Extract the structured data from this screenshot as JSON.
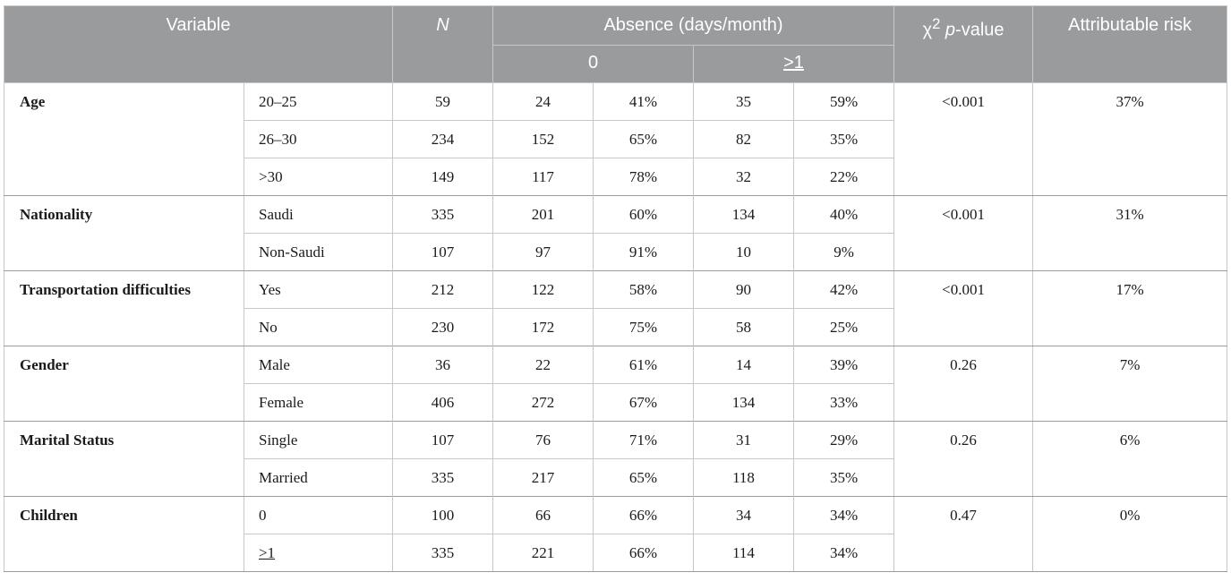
{
  "header": {
    "variable": "Variable",
    "n": "N",
    "absence": "Absence (days/month)",
    "absence_zero": "0",
    "absence_ge1": ">1",
    "chi_symbol": "χ",
    "chi_exp": "2",
    "p_label": "p",
    "p_suffix": "-value",
    "attributable_risk": "Attributable risk"
  },
  "groups": [
    {
      "label": "Age",
      "p_value": "<0.001",
      "risk": "37%",
      "rows": [
        {
          "category": "20–25",
          "n": "59",
          "zero_n": "24",
          "zero_pct": "41%",
          "ge1_n": "35",
          "ge1_pct": "59%"
        },
        {
          "category": "26–30",
          "n": "234",
          "zero_n": "152",
          "zero_pct": "65%",
          "ge1_n": "82",
          "ge1_pct": "35%"
        },
        {
          "category": ">30",
          "n": "149",
          "zero_n": "117",
          "zero_pct": "78%",
          "ge1_n": "32",
          "ge1_pct": "22%"
        }
      ]
    },
    {
      "label": "Nationality",
      "p_value": "<0.001",
      "risk": "31%",
      "rows": [
        {
          "category": "Saudi",
          "n": "335",
          "zero_n": "201",
          "zero_pct": "60%",
          "ge1_n": "134",
          "ge1_pct": "40%"
        },
        {
          "category": "Non-Saudi",
          "n": "107",
          "zero_n": "97",
          "zero_pct": "91%",
          "ge1_n": "10",
          "ge1_pct": "9%"
        }
      ]
    },
    {
      "label": "Transportation difficulties",
      "p_value": "<0.001",
      "risk": "17%",
      "rows": [
        {
          "category": "Yes",
          "n": "212",
          "zero_n": "122",
          "zero_pct": "58%",
          "ge1_n": "90",
          "ge1_pct": "42%"
        },
        {
          "category": "No",
          "n": "230",
          "zero_n": "172",
          "zero_pct": "75%",
          "ge1_n": "58",
          "ge1_pct": "25%"
        }
      ]
    },
    {
      "label": "Gender",
      "p_value": "0.26",
      "risk": "7%",
      "rows": [
        {
          "category": "Male",
          "n": "36",
          "zero_n": "22",
          "zero_pct": "61%",
          "ge1_n": "14",
          "ge1_pct": "39%"
        },
        {
          "category": "Female",
          "n": "406",
          "zero_n": "272",
          "zero_pct": "67%",
          "ge1_n": "134",
          "ge1_pct": "33%"
        }
      ]
    },
    {
      "label": "Marital Status",
      "p_value": "0.26",
      "risk": "6%",
      "rows": [
        {
          "category": "Single",
          "n": "107",
          "zero_n": "76",
          "zero_pct": "71%",
          "ge1_n": "31",
          "ge1_pct": "29%"
        },
        {
          "category": "Married",
          "n": "335",
          "zero_n": "217",
          "zero_pct": "65%",
          "ge1_n": "118",
          "ge1_pct": "35%"
        }
      ]
    },
    {
      "label": "Children",
      "p_value": "0.47",
      "risk": "0%",
      "rows": [
        {
          "category": "0",
          "n": "100",
          "zero_n": "66",
          "zero_pct": "66%",
          "ge1_n": "34",
          "ge1_pct": "34%"
        },
        {
          "category": ">1",
          "category_underline": true,
          "n": "335",
          "zero_n": "221",
          "zero_pct": "66%",
          "ge1_n": "114",
          "ge1_pct": "34%"
        }
      ]
    }
  ]
}
